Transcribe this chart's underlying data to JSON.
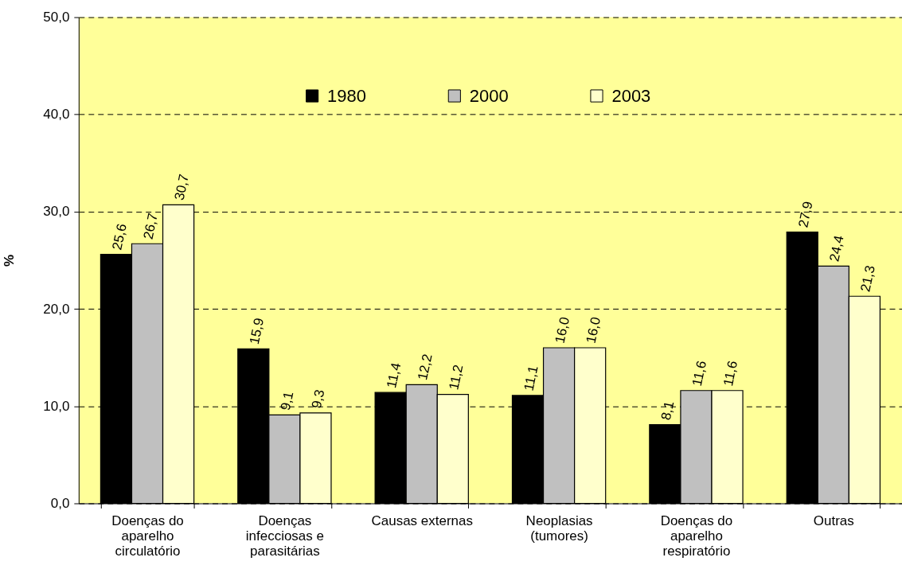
{
  "chart_data": {
    "type": "bar",
    "ylabel": "%",
    "categories": [
      "Doenças do aparelho circulatório",
      "Doenças infecciosas e parasitárias",
      "Causas externas",
      "Neoplasias (tumores)",
      "Doenças do aparelho respiratório",
      "Outras"
    ],
    "series": [
      {
        "name": "1980",
        "color": "#000000",
        "values": [
          25.6,
          15.9,
          11.4,
          11.1,
          8.1,
          27.9
        ],
        "value_labels": [
          "25,6",
          "15,9",
          "11,4",
          "11,1",
          "8,1",
          "27,9"
        ]
      },
      {
        "name": "2000",
        "color": "#c0c0c0",
        "values": [
          26.7,
          9.1,
          12.2,
          16.0,
          11.6,
          24.4
        ],
        "value_labels": [
          "26,7",
          "9,1",
          "12,2",
          "16,0",
          "11,6",
          "24,4"
        ]
      },
      {
        "name": "2003",
        "color": "#ffffcc",
        "values": [
          30.7,
          9.3,
          11.2,
          16.0,
          11.6,
          21.3
        ],
        "value_labels": [
          "30,7",
          "9,3",
          "11,2",
          "16,0",
          "11,6",
          "21,3"
        ]
      }
    ],
    "ylim": [
      0,
      50
    ],
    "yticks": [
      {
        "value": 0,
        "label": "0,0"
      },
      {
        "value": 10,
        "label": "10,0"
      },
      {
        "value": 20,
        "label": "20,0"
      },
      {
        "value": 30,
        "label": "30,0"
      },
      {
        "value": 40,
        "label": "40,0"
      },
      {
        "value": 50,
        "label": "50,0"
      }
    ],
    "grid": "y",
    "legend": "top"
  }
}
